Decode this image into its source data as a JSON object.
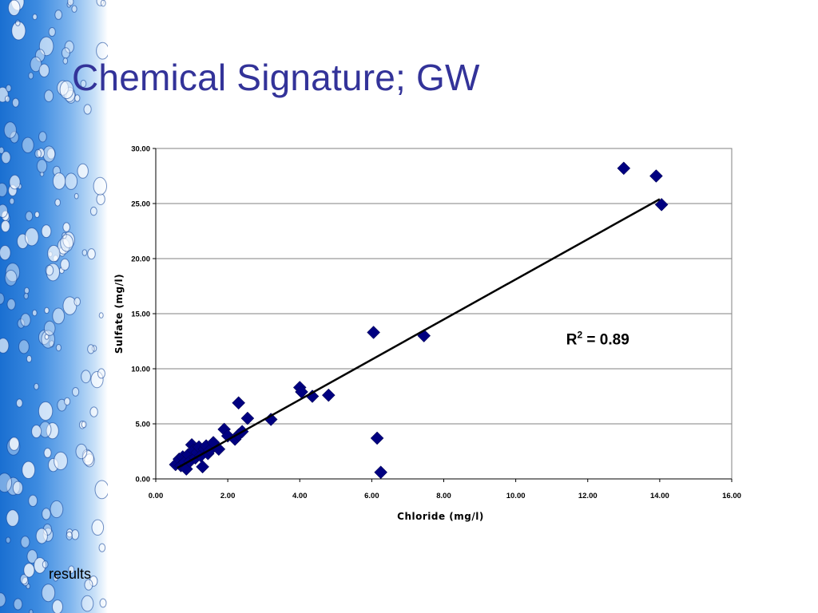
{
  "slide": {
    "title": "Chemical Signature; GW",
    "footer_note": "results",
    "title_color": "#333399"
  },
  "chart_data": {
    "type": "scatter",
    "xlabel": "Chloride (mg/l)",
    "ylabel": "Sulfate (mg/l)",
    "xlim": [
      0,
      16
    ],
    "ylim": [
      0,
      30
    ],
    "x_ticks": [
      "0.00",
      "2.00",
      "4.00",
      "6.00",
      "8.00",
      "10.00",
      "12.00",
      "14.00",
      "16.00"
    ],
    "y_ticks": [
      "0.00",
      "5.00",
      "10.00",
      "15.00",
      "20.00",
      "25.00",
      "30.00"
    ],
    "grid": {
      "horizontal": true,
      "vertical": false
    },
    "marker": "diamond",
    "marker_color": "#000080",
    "trendline": {
      "type": "linear",
      "x": [
        0.6,
        14.0
      ],
      "y": [
        1.0,
        25.4
      ],
      "color": "#000000"
    },
    "annotation": {
      "text_base": "R",
      "superscript": "2",
      "text_rest": " = 0.89",
      "x": 11.4,
      "y": 12.2
    },
    "points": [
      [
        0.55,
        1.3
      ],
      [
        0.65,
        1.8
      ],
      [
        0.7,
        1.2
      ],
      [
        0.75,
        2.0
      ],
      [
        0.8,
        1.5
      ],
      [
        0.85,
        0.9
      ],
      [
        0.9,
        2.2
      ],
      [
        0.95,
        1.6
      ],
      [
        1.0,
        3.1
      ],
      [
        1.05,
        2.6
      ],
      [
        1.1,
        1.9
      ],
      [
        1.15,
        2.4
      ],
      [
        1.2,
        2.9
      ],
      [
        1.25,
        2.1
      ],
      [
        1.3,
        1.1
      ],
      [
        1.35,
        2.7
      ],
      [
        1.4,
        3.0
      ],
      [
        1.45,
        2.3
      ],
      [
        1.5,
        2.6
      ],
      [
        1.6,
        3.3
      ],
      [
        1.75,
        2.7
      ],
      [
        1.9,
        4.5
      ],
      [
        2.0,
        3.9
      ],
      [
        2.2,
        3.6
      ],
      [
        2.3,
        4.0
      ],
      [
        2.4,
        4.3
      ],
      [
        2.3,
        6.9
      ],
      [
        2.55,
        5.5
      ],
      [
        3.2,
        5.4
      ],
      [
        4.0,
        8.3
      ],
      [
        4.05,
        7.9
      ],
      [
        4.35,
        7.5
      ],
      [
        4.8,
        7.6
      ],
      [
        6.05,
        13.3
      ],
      [
        6.15,
        3.7
      ],
      [
        6.25,
        0.6
      ],
      [
        7.45,
        13.0
      ],
      [
        13.0,
        28.2
      ],
      [
        13.9,
        27.5
      ],
      [
        14.05,
        24.9
      ]
    ]
  }
}
